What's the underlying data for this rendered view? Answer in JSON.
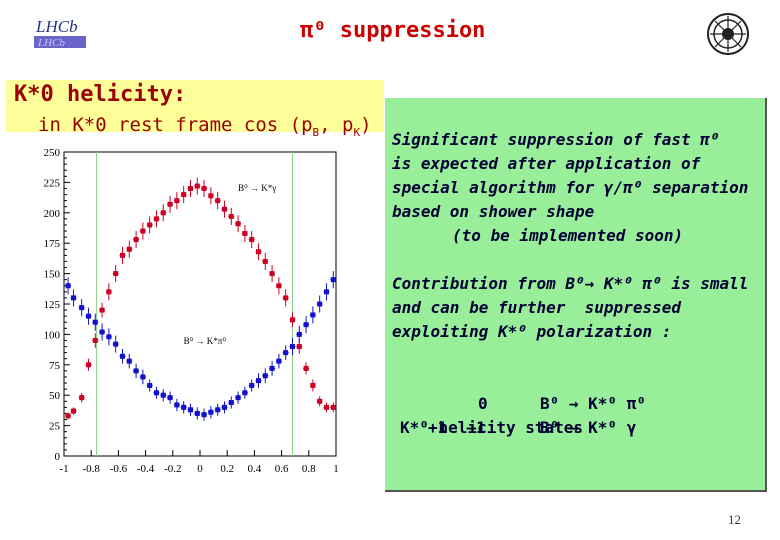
{
  "header": {
    "title": "π⁰ suppression",
    "logo_text": "LHCb",
    "page_number": "12"
  },
  "helicity_box": {
    "line1": "K*0 helicity:",
    "line2_prefix": "in K*0 rest frame cos (p",
    "sub_b": "B",
    "mid": ", p",
    "sub_k": "K",
    "suffix": ")"
  },
  "green_box": {
    "p1_l1": "Significant suppression of fast π⁰",
    "p1_l2": "is expected after application of",
    "p1_l3": "special algorithm for γ/π⁰ separation",
    "p1_l4": "based on shower shape",
    "p1_l5": "(to be implemented soon)",
    "p2_l1": "Contribution from B⁰→ K*⁰ π⁰ is small",
    "p2_l2": "and can be further  suppressed",
    "p2_l3": "exploiting K*⁰ polarization :",
    "states_title": "K*⁰ helicity states",
    "row1_hel": "0",
    "row1_decay": "B⁰ → K*⁰ π⁰",
    "row2_hel": "+1  –1",
    "row2_decay": "B⁰ → K*⁰ γ"
  },
  "chart_data": {
    "type": "scatter",
    "xlim": [
      -1,
      1
    ],
    "ylim": [
      0,
      250
    ],
    "x_ticks": [
      "-1",
      "-0.8",
      "-0.6",
      "-0.4",
      "-0.2",
      "0",
      "0.2",
      "0.4",
      "0.6",
      "0.8",
      "1"
    ],
    "y_ticks": [
      "0",
      "25",
      "50",
      "75",
      "100",
      "125",
      "150",
      "175",
      "200",
      "225",
      "250"
    ],
    "cut_lines": [
      -0.76,
      0.68
    ],
    "series": [
      {
        "name": "B⁰ → K*γ",
        "color": "#cc0022",
        "x": [
          -0.97,
          -0.93,
          -0.87,
          -0.82,
          -0.77,
          -0.72,
          -0.67,
          -0.62,
          -0.57,
          -0.52,
          -0.47,
          -0.42,
          -0.37,
          -0.32,
          -0.27,
          -0.22,
          -0.17,
          -0.12,
          -0.07,
          -0.02,
          0.03,
          0.08,
          0.13,
          0.18,
          0.23,
          0.28,
          0.33,
          0.38,
          0.43,
          0.48,
          0.53,
          0.58,
          0.63,
          0.68,
          0.73,
          0.78,
          0.83,
          0.88,
          0.93,
          0.98
        ],
        "y": [
          33,
          37,
          48,
          75,
          95,
          120,
          135,
          150,
          165,
          170,
          178,
          185,
          190,
          195,
          200,
          207,
          210,
          215,
          220,
          222,
          220,
          214,
          210,
          203,
          197,
          191,
          183,
          178,
          168,
          160,
          150,
          140,
          130,
          112,
          90,
          72,
          58,
          45,
          40,
          40
        ],
        "err": [
          3,
          3,
          4,
          5,
          6,
          6,
          7,
          7,
          7,
          7,
          7,
          7,
          7,
          7,
          7,
          7,
          7,
          7,
          7,
          7,
          7,
          7,
          7,
          7,
          7,
          7,
          7,
          7,
          7,
          7,
          7,
          7,
          7,
          6,
          6,
          5,
          5,
          4,
          4,
          4
        ]
      },
      {
        "name": "B⁰ → K*π⁰",
        "color": "#1111cc",
        "x": [
          -0.97,
          -0.93,
          -0.87,
          -0.82,
          -0.77,
          -0.72,
          -0.67,
          -0.62,
          -0.57,
          -0.52,
          -0.47,
          -0.42,
          -0.37,
          -0.32,
          -0.27,
          -0.22,
          -0.17,
          -0.12,
          -0.07,
          -0.02,
          0.03,
          0.08,
          0.13,
          0.18,
          0.23,
          0.28,
          0.33,
          0.38,
          0.43,
          0.48,
          0.53,
          0.58,
          0.63,
          0.68,
          0.73,
          0.78,
          0.83,
          0.88,
          0.93,
          0.98
        ],
        "y": [
          140,
          130,
          122,
          115,
          110,
          102,
          98,
          92,
          82,
          78,
          70,
          65,
          58,
          52,
          50,
          48,
          42,
          40,
          38,
          35,
          34,
          36,
          38,
          40,
          44,
          48,
          52,
          58,
          62,
          66,
          72,
          78,
          85,
          90,
          100,
          108,
          116,
          125,
          135,
          145
        ],
        "err": [
          7,
          7,
          7,
          7,
          7,
          7,
          7,
          7,
          6,
          6,
          6,
          6,
          5,
          5,
          5,
          5,
          5,
          5,
          5,
          5,
          5,
          5,
          5,
          5,
          5,
          5,
          5,
          5,
          6,
          6,
          6,
          6,
          6,
          7,
          7,
          7,
          7,
          7,
          7,
          7
        ]
      }
    ],
    "labels": [
      {
        "text": "B⁰ → K*γ",
        "x": 0.28,
        "y": 218
      },
      {
        "text": "B⁰ → K*π⁰",
        "x": -0.12,
        "y": 92
      }
    ]
  }
}
